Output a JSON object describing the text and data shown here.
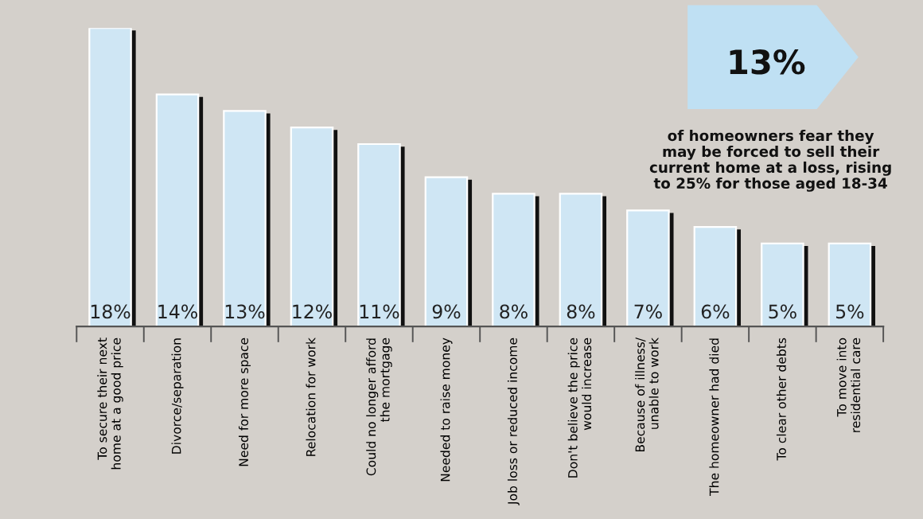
{
  "chart_data": {
    "type": "bar",
    "categories": [
      "To secure their next\nhome at a good price",
      "Divorce/separation",
      "Need for more space",
      "Relocation for work",
      "Could no longer afford\nthe mortgage",
      "Needed to raise money",
      "Job loss or reduced income",
      "Don't believe the price\nwould increase",
      "Because of illness/\nunable to work",
      "The homeowner had died",
      "To clear other debts",
      "To move into\nresidential care"
    ],
    "values": [
      18,
      14,
      13,
      12,
      11,
      9,
      8,
      8,
      7,
      6,
      5,
      5
    ],
    "value_labels": [
      "18%",
      "14%",
      "13%",
      "12%",
      "11%",
      "9%",
      "8%",
      "8%",
      "7%",
      "6%",
      "5%",
      "5%"
    ],
    "color": "#cfe6f4",
    "annotations": [
      "13%",
      "of homeowners fear they\nmay be forced to sell their\ncurrent home at a loss, rising\nto 25% for those aged 18-34"
    ],
    "grid": false,
    "legend": false
  }
}
